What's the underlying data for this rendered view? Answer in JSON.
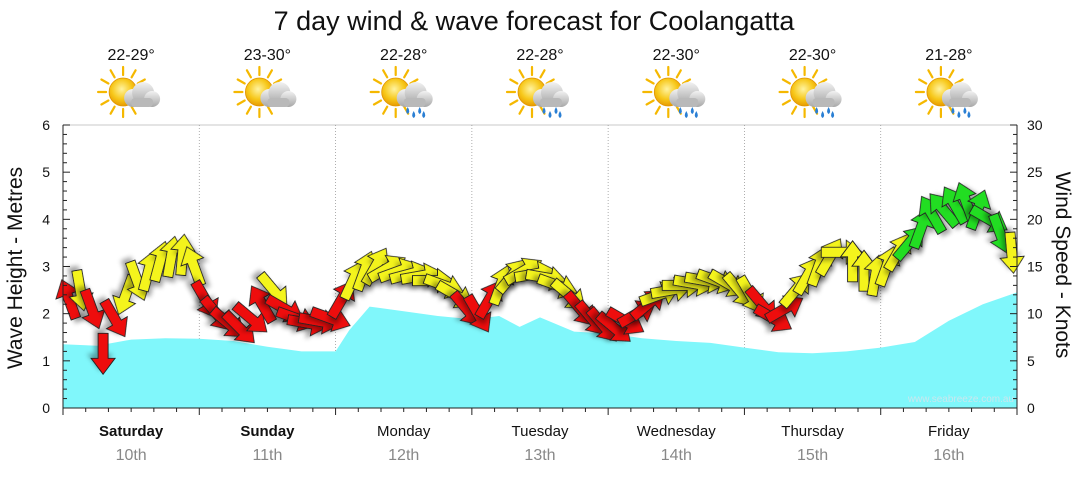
{
  "chart_data": {
    "type": "line",
    "title": "7 day wind & wave forecast for Coolangatta",
    "ylabel_left": "Wave Height - Metres",
    "ylabel_right": "Wind Speed - Knots",
    "ylim_left": [
      0,
      6
    ],
    "ylim_right": [
      0,
      30
    ],
    "yticks_left": [
      "0",
      "1",
      "2",
      "3",
      "4",
      "5",
      "6"
    ],
    "yticks_right": [
      "0",
      "5",
      "10",
      "15",
      "20",
      "25",
      "30"
    ],
    "watermark": "www.seabreeze.com.au",
    "colors": {
      "wave_fill": "#80f7fb",
      "wind_low": "#ee1111",
      "wind_mid": "#f4f41a",
      "wind_high": "#22dd22",
      "arrow_stroke": "#222222",
      "grid": "#9a9a9a",
      "sun": "#f5b800",
      "cloud": "#c4c4c4",
      "rain": "#2a7fd4"
    },
    "days": [
      {
        "name": "Saturday",
        "date": "10th",
        "temp": "22-29°",
        "icon": "sun-cloud-icon",
        "bold": true
      },
      {
        "name": "Sunday",
        "date": "11th",
        "temp": "23-30°",
        "icon": "sun-cloud-icon",
        "bold": true
      },
      {
        "name": "Monday",
        "date": "12th",
        "temp": "22-28°",
        "icon": "sun-cloud-rain-icon",
        "bold": false
      },
      {
        "name": "Tuesday",
        "date": "13th",
        "temp": "22-28°",
        "icon": "sun-cloud-rain-icon",
        "bold": false
      },
      {
        "name": "Wednesday",
        "date": "14th",
        "temp": "22-30°",
        "icon": "sun-cloud-rain-icon",
        "bold": false
      },
      {
        "name": "Thursday",
        "date": "15th",
        "temp": "22-30°",
        "icon": "sun-cloud-rain-icon",
        "bold": false
      },
      {
        "name": "Friday",
        "date": "16th",
        "temp": "21-28°",
        "icon": "sun-cloud-rain-icon",
        "bold": false
      }
    ],
    "wave_height_m": {
      "x_days": [
        0,
        0.25,
        0.5,
        0.75,
        1,
        1.25,
        1.5,
        1.75,
        2,
        2.1,
        2.25,
        2.5,
        2.75,
        3,
        3.2,
        3.35,
        3.5,
        3.75,
        4,
        4.25,
        4.5,
        4.75,
        5,
        5.25,
        5.5,
        5.75,
        6,
        6.25,
        6.5,
        6.75,
        7
      ],
      "values": [
        1.35,
        1.32,
        1.45,
        1.48,
        1.47,
        1.42,
        1.3,
        1.2,
        1.2,
        1.65,
        2.15,
        2.05,
        1.95,
        1.88,
        1.95,
        1.72,
        1.92,
        1.62,
        1.58,
        1.48,
        1.42,
        1.38,
        1.28,
        1.18,
        1.16,
        1.2,
        1.28,
        1.4,
        1.85,
        2.2,
        2.45
      ]
    },
    "wind": {
      "note": "speed in knots at 2-hourly steps; dir = arrow pointing direction in degrees (0 = up, clockwise)",
      "x_days": [
        0.0,
        0.083,
        0.167,
        0.25,
        0.333,
        0.417,
        0.5,
        0.583,
        0.667,
        0.75,
        0.833,
        0.917,
        1.0,
        1.083,
        1.167,
        1.25,
        1.333,
        1.417,
        1.5,
        1.583,
        1.667,
        1.75,
        1.833,
        1.917,
        2.0,
        2.083,
        2.167,
        2.25,
        2.333,
        2.417,
        2.5,
        2.583,
        2.667,
        2.75,
        2.833,
        2.917,
        3.0,
        3.083,
        3.167,
        3.25,
        3.333,
        3.417,
        3.5,
        3.583,
        3.667,
        3.75,
        3.833,
        3.917,
        4.0,
        4.083,
        4.167,
        4.25,
        4.333,
        4.417,
        4.5,
        4.583,
        4.667,
        4.75,
        4.833,
        4.917,
        5.0,
        5.083,
        5.167,
        5.25,
        5.333,
        5.417,
        5.5,
        5.583,
        5.667,
        5.75,
        5.833,
        5.917,
        6.0,
        6.083,
        6.167,
        6.25,
        6.333,
        6.417,
        6.5,
        6.583,
        6.667,
        6.75,
        6.833,
        6.917
      ],
      "speeds_kt": [
        11.5,
        12.5,
        10.5,
        5.8,
        9.5,
        12.0,
        13.5,
        14.5,
        15.5,
        16.0,
        16.2,
        15.0,
        11.5,
        10.0,
        9.0,
        8.5,
        9.5,
        11.0,
        12.5,
        10.5,
        9.5,
        9.0,
        9.2,
        9.5,
        11.5,
        13.5,
        14.5,
        15.0,
        14.8,
        14.5,
        14.2,
        14.0,
        13.5,
        13.0,
        12.0,
        10.5,
        10.0,
        11.5,
        13.0,
        14.0,
        14.5,
        14.2,
        13.8,
        13.0,
        12.0,
        10.5,
        9.5,
        8.8,
        8.5,
        9.2,
        10.0,
        11.0,
        12.0,
        12.5,
        13.0,
        13.2,
        13.5,
        13.5,
        13.2,
        12.5,
        12.0,
        11.0,
        9.5,
        10.5,
        12.5,
        14.0,
        15.0,
        16.0,
        16.5,
        15.5,
        14.5,
        14.0,
        15.0,
        16.5,
        17.5,
        19.0,
        20.5,
        21.0,
        21.5,
        21.8,
        21.0,
        20.0,
        18.5,
        16.5
      ],
      "dirs_deg": [
        340,
        170,
        160,
        180,
        150,
        200,
        160,
        15,
        15,
        10,
        5,
        340,
        150,
        140,
        130,
        135,
        130,
        330,
        140,
        120,
        110,
        100,
        100,
        110,
        30,
        25,
        20,
        30,
        60,
        70,
        75,
        80,
        90,
        110,
        120,
        140,
        150,
        30,
        20,
        40,
        60,
        80,
        100,
        110,
        130,
        140,
        140,
        140,
        130,
        120,
        60,
        50,
        70,
        80,
        90,
        100,
        100,
        110,
        120,
        140,
        150,
        140,
        120,
        60,
        40,
        30,
        20,
        30,
        90,
        0,
        0,
        10,
        20,
        30,
        40,
        20,
        330,
        320,
        330,
        340,
        20,
        120,
        160,
        175
      ]
    }
  }
}
